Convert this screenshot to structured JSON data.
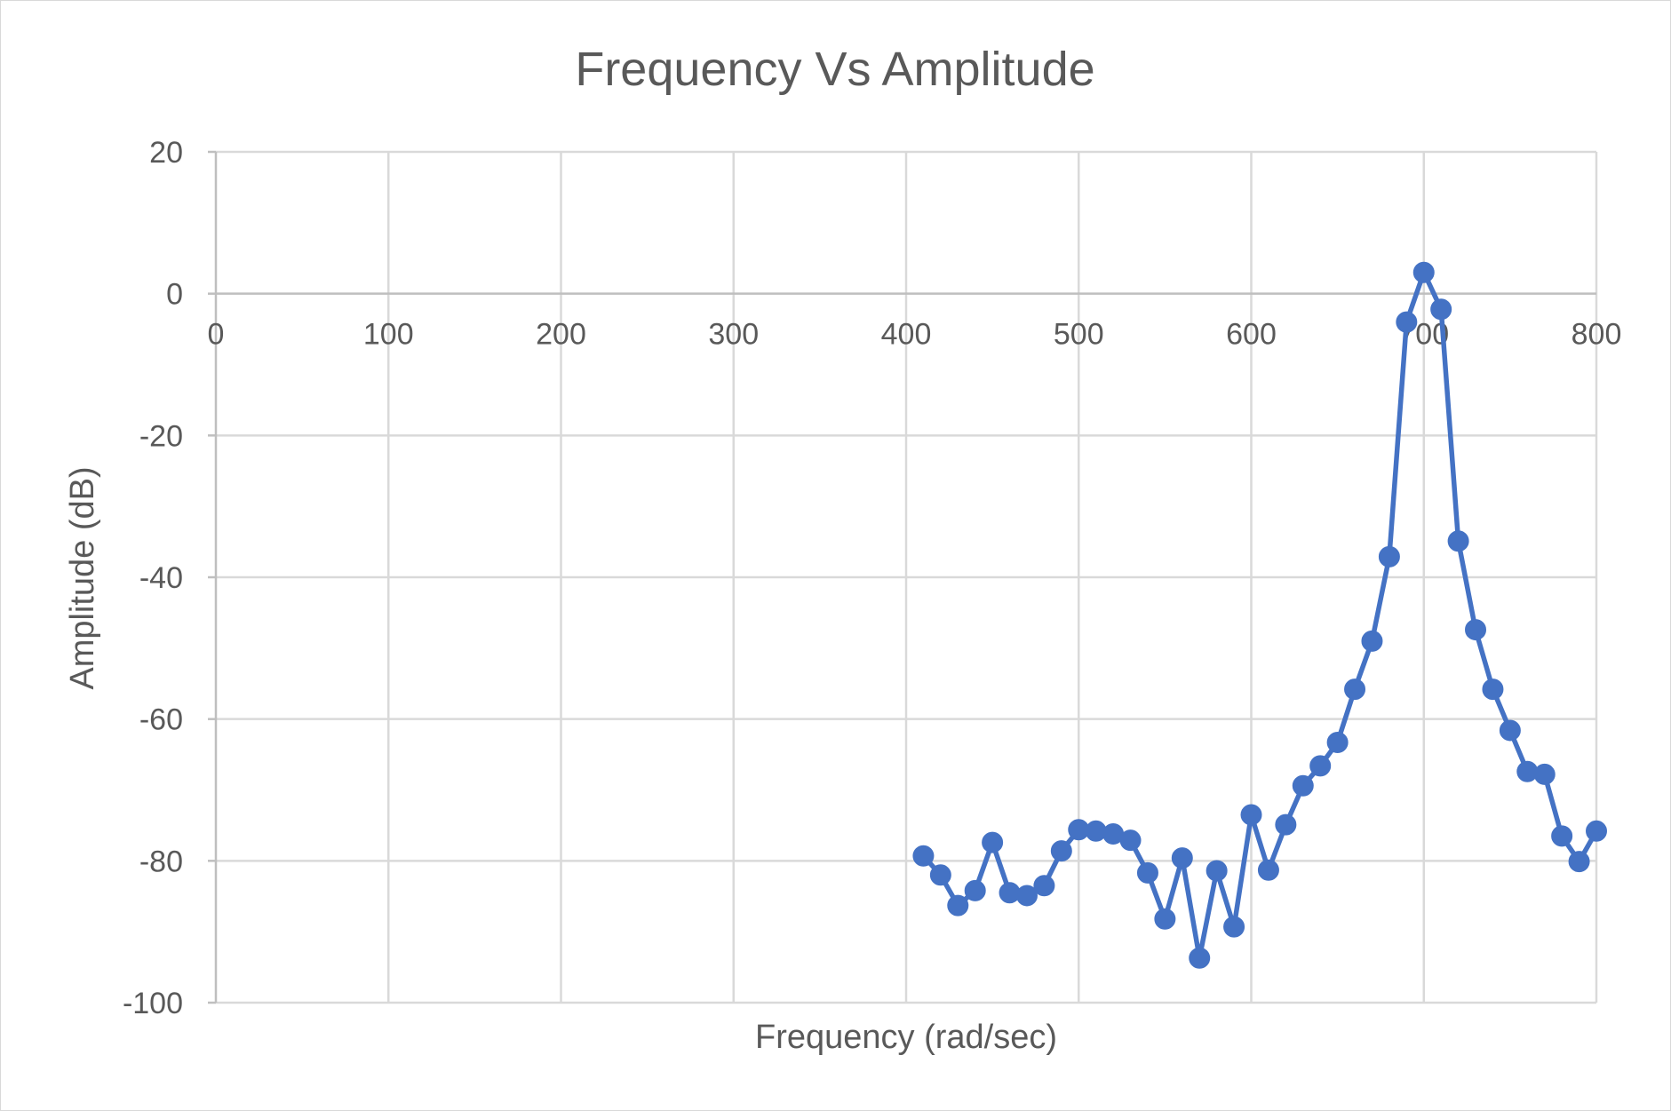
{
  "chart_data": {
    "type": "line",
    "title": "Frequency Vs Amplitude",
    "xlabel": "Frequency (rad/sec)",
    "ylabel": "Amplitude (dB)",
    "xlim": [
      0,
      800
    ],
    "ylim": [
      -100,
      20
    ],
    "x_ticks": [
      "0",
      "100",
      "200",
      "300",
      "400",
      "500",
      "600",
      "700",
      "800"
    ],
    "y_ticks": [
      "20",
      "0",
      "-20",
      "-40",
      "-60",
      "-80",
      "-100"
    ],
    "x_tick_values": [
      0,
      100,
      200,
      300,
      400,
      500,
      600,
      700,
      800
    ],
    "y_tick_values": [
      20,
      0,
      -20,
      -40,
      -60,
      -80,
      -100
    ],
    "grid": true,
    "legend": "none",
    "series": [
      {
        "color": "#4472c4",
        "marker": "circle",
        "x": [
          410,
          420,
          430,
          440,
          450,
          460,
          470,
          480,
          490,
          500,
          510,
          520,
          530,
          540,
          550,
          560,
          570,
          580,
          590,
          600,
          610,
          620,
          630,
          640,
          650,
          660,
          670,
          680,
          690,
          700,
          710,
          720,
          730,
          740,
          750,
          760,
          770,
          780,
          790,
          800
        ],
        "y": [
          -79.3,
          -82,
          -86.3,
          -84.2,
          -77.4,
          -84.5,
          -84.9,
          -83.5,
          -78.6,
          -75.6,
          -75.8,
          -76.2,
          -77.1,
          -81.7,
          -88.2,
          -79.6,
          -93.7,
          -81.4,
          -89.3,
          -73.5,
          -81.3,
          -74.9,
          -69.4,
          -66.6,
          -63.3,
          -55.8,
          -49,
          -37.1,
          -4,
          3,
          -2.2,
          -34.9,
          -47.4,
          -55.8,
          -61.6,
          -67.4,
          -67.8,
          -76.5,
          -80.1,
          -75.8
        ]
      }
    ]
  }
}
